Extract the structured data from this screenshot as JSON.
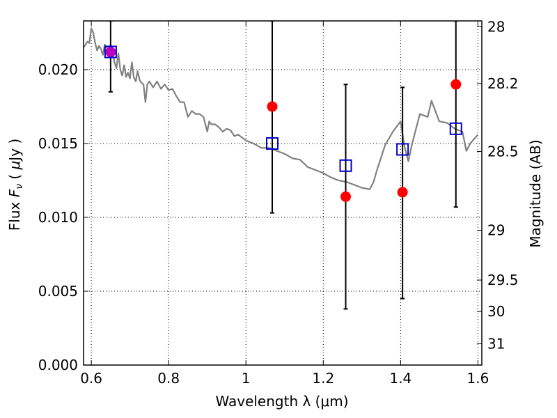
{
  "chart_data": {
    "type": "scatter",
    "xlabel": "Wavelength  λ (μm)",
    "ylabel_left": "Flux  F_ν  ( μJy )",
    "ylabel_right": "Magnitude (AB)",
    "xlim": [
      0.58,
      1.61
    ],
    "ylim": [
      0.0,
      0.0233
    ],
    "grid": true,
    "x_ticks": [
      {
        "v": 0.6,
        "label": "0.6"
      },
      {
        "v": 0.8,
        "label": "0.8"
      },
      {
        "v": 1.0,
        "label": "1"
      },
      {
        "v": 1.2,
        "label": "1.2"
      },
      {
        "v": 1.4,
        "label": "1.4"
      },
      {
        "v": 1.6,
        "label": "1.6"
      }
    ],
    "y_ticks": [
      {
        "v": 0.0,
        "label": "0.000"
      },
      {
        "v": 0.005,
        "label": "0.005"
      },
      {
        "v": 0.01,
        "label": "0.010"
      },
      {
        "v": 0.015,
        "label": "0.015"
      },
      {
        "v": 0.02,
        "label": "0.020"
      }
    ],
    "mag_ticks": [
      {
        "v": 28,
        "label": "28"
      },
      {
        "v": 28.2,
        "label": "28.2"
      },
      {
        "v": 28.5,
        "label": "28.5"
      },
      {
        "v": 29,
        "label": "29"
      },
      {
        "v": 29.5,
        "label": "29.5"
      },
      {
        "v": 30,
        "label": "30"
      },
      {
        "v": 31,
        "label": "31"
      }
    ],
    "observed": {
      "color": "#ff0000",
      "points": [
        {
          "x": 0.65,
          "y": 0.0212
        },
        {
          "x": 1.068,
          "y": 0.0175,
          "yerr": [
            0.0103,
            0.0233
          ]
        },
        {
          "x": 1.258,
          "y": 0.0114,
          "yerr": [
            0.0038,
            0.019
          ]
        },
        {
          "x": 1.405,
          "y": 0.0117,
          "yerr": [
            0.0045,
            0.0188
          ]
        },
        {
          "x": 1.543,
          "y": 0.019,
          "yerr": [
            0.0107,
            0.0233
          ]
        }
      ]
    },
    "first_point_extra": {
      "color": "#bf00bf",
      "yerr": [
        0.0185,
        0.0233
      ]
    },
    "model_bands": {
      "color": "#0000cc",
      "points": [
        {
          "x": 0.65,
          "y": 0.0212
        },
        {
          "x": 1.068,
          "y": 0.015
        },
        {
          "x": 1.258,
          "y": 0.0135
        },
        {
          "x": 1.405,
          "y": 0.0146
        },
        {
          "x": 1.543,
          "y": 0.016
        }
      ]
    },
    "model_spectrum": {
      "color": "#808080",
      "x": [
        0.58,
        0.59,
        0.595,
        0.6,
        0.605,
        0.61,
        0.615,
        0.62,
        0.625,
        0.63,
        0.635,
        0.64,
        0.645,
        0.65,
        0.655,
        0.66,
        0.665,
        0.67,
        0.675,
        0.68,
        0.685,
        0.69,
        0.695,
        0.7,
        0.705,
        0.71,
        0.715,
        0.72,
        0.725,
        0.73,
        0.735,
        0.74,
        0.745,
        0.75,
        0.76,
        0.77,
        0.78,
        0.79,
        0.8,
        0.81,
        0.82,
        0.83,
        0.84,
        0.85,
        0.86,
        0.87,
        0.88,
        0.89,
        0.9,
        0.905,
        0.91,
        0.92,
        0.93,
        0.94,
        0.95,
        0.96,
        0.97,
        0.98,
        0.99,
        1.0,
        1.02,
        1.04,
        1.06,
        1.08,
        1.1,
        1.12,
        1.14,
        1.16,
        1.18,
        1.2,
        1.22,
        1.24,
        1.26,
        1.28,
        1.3,
        1.32,
        1.33,
        1.34,
        1.36,
        1.38,
        1.4,
        1.41,
        1.42,
        1.43,
        1.45,
        1.47,
        1.48,
        1.5,
        1.52,
        1.54,
        1.56,
        1.57,
        1.58,
        1.6
      ],
      "y": [
        0.0215,
        0.0219,
        0.0218,
        0.0228,
        0.0225,
        0.0218,
        0.0213,
        0.0216,
        0.0214,
        0.021,
        0.0217,
        0.0215,
        0.0213,
        0.0217,
        0.0212,
        0.0205,
        0.0201,
        0.0211,
        0.02,
        0.0196,
        0.0203,
        0.0195,
        0.0198,
        0.0194,
        0.0205,
        0.0195,
        0.0192,
        0.0199,
        0.0193,
        0.0191,
        0.019,
        0.0178,
        0.019,
        0.0192,
        0.0188,
        0.0192,
        0.0187,
        0.019,
        0.0186,
        0.0187,
        0.0182,
        0.0178,
        0.0178,
        0.0168,
        0.0172,
        0.017,
        0.017,
        0.0168,
        0.0158,
        0.0165,
        0.0163,
        0.0163,
        0.0161,
        0.0158,
        0.016,
        0.0159,
        0.0155,
        0.0156,
        0.0154,
        0.0152,
        0.015,
        0.0147,
        0.0147,
        0.0145,
        0.0143,
        0.014,
        0.0139,
        0.0134,
        0.0132,
        0.013,
        0.0127,
        0.0125,
        0.0124,
        0.0122,
        0.012,
        0.0119,
        0.0124,
        0.0133,
        0.0149,
        0.0158,
        0.0165,
        0.0148,
        0.0138,
        0.015,
        0.017,
        0.0168,
        0.0179,
        0.0165,
        0.0164,
        0.016,
        0.0158,
        0.0145,
        0.015,
        0.0156
      ]
    }
  }
}
